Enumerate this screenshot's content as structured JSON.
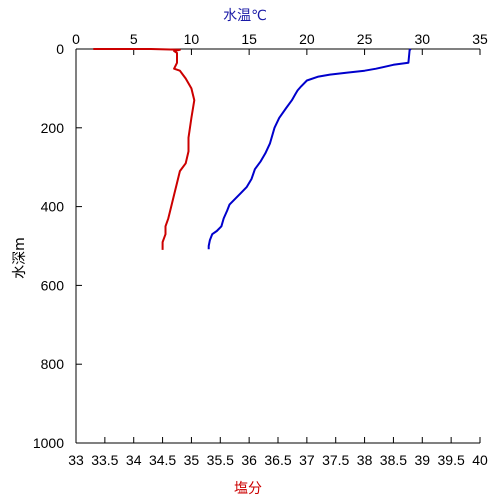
{
  "chart_data": {
    "type": "line",
    "top_axis": {
      "label": "水温℃",
      "label_color": "#1a1aa6",
      "range": [
        0,
        35
      ],
      "ticks": [
        0,
        5,
        10,
        15,
        20,
        25,
        30,
        35
      ],
      "tick_labels": [
        "0",
        "5",
        "10",
        "15",
        "20",
        "25",
        "30",
        "35"
      ]
    },
    "bottom_axis": {
      "label": "塩分",
      "label_color": "#cc0000",
      "range": [
        33,
        40
      ],
      "ticks": [
        33,
        33.5,
        34,
        34.5,
        35,
        35.5,
        36,
        36.5,
        37,
        37.5,
        38,
        38.5,
        39,
        39.5,
        40
      ],
      "tick_labels": [
        "33",
        "33.5",
        "34",
        "34.5",
        "35",
        "35.5",
        "36",
        "36.5",
        "37",
        "37.5",
        "38",
        "38.5",
        "39",
        "39.5",
        "40"
      ]
    },
    "y_axis": {
      "label": "水深m",
      "range": [
        0,
        1000
      ],
      "reversed": true,
      "ticks": [
        0,
        200,
        400,
        600,
        800,
        1000
      ],
      "tick_labels": [
        "0",
        "200",
        "400",
        "600",
        "800",
        "1000"
      ]
    },
    "series": [
      {
        "axis": "top",
        "color": "#0000cc",
        "points": [
          [
            29.0,
            0
          ],
          [
            28.9,
            3
          ],
          [
            28.8,
            35
          ],
          [
            27.5,
            40
          ],
          [
            26.0,
            50
          ],
          [
            25.0,
            55
          ],
          [
            23.5,
            60
          ],
          [
            22.0,
            65
          ],
          [
            21.0,
            70
          ],
          [
            20.0,
            80
          ],
          [
            19.5,
            95
          ],
          [
            19.2,
            105
          ],
          [
            19.0,
            115
          ],
          [
            18.7,
            130
          ],
          [
            18.2,
            150
          ],
          [
            17.6,
            175
          ],
          [
            17.2,
            200
          ],
          [
            16.8,
            240
          ],
          [
            16.4,
            265
          ],
          [
            16.0,
            285
          ],
          [
            15.5,
            305
          ],
          [
            15.2,
            330
          ],
          [
            14.8,
            350
          ],
          [
            14.3,
            365
          ],
          [
            13.8,
            380
          ],
          [
            13.3,
            395
          ],
          [
            13.1,
            410
          ],
          [
            12.8,
            430
          ],
          [
            12.6,
            450
          ],
          [
            12.2,
            462
          ],
          [
            11.8,
            470
          ],
          [
            11.6,
            485
          ],
          [
            11.5,
            500
          ],
          [
            11.5,
            508
          ]
        ]
      },
      {
        "axis": "bottom",
        "color": "#cc0000",
        "points": [
          [
            33.3,
            0
          ],
          [
            33.8,
            0
          ],
          [
            34.3,
            0
          ],
          [
            34.8,
            2
          ],
          [
            34.7,
            5
          ],
          [
            34.75,
            10
          ],
          [
            34.75,
            35
          ],
          [
            34.7,
            50
          ],
          [
            34.8,
            55
          ],
          [
            34.85,
            65
          ],
          [
            34.9,
            75
          ],
          [
            35.0,
            100
          ],
          [
            35.05,
            130
          ],
          [
            35.0,
            175
          ],
          [
            34.95,
            225
          ],
          [
            34.95,
            260
          ],
          [
            34.9,
            290
          ],
          [
            34.8,
            310
          ],
          [
            34.75,
            340
          ],
          [
            34.7,
            370
          ],
          [
            34.65,
            400
          ],
          [
            34.6,
            430
          ],
          [
            34.55,
            450
          ],
          [
            34.55,
            470
          ],
          [
            34.5,
            490
          ],
          [
            34.5,
            510
          ]
        ]
      }
    ],
    "grid": false
  }
}
